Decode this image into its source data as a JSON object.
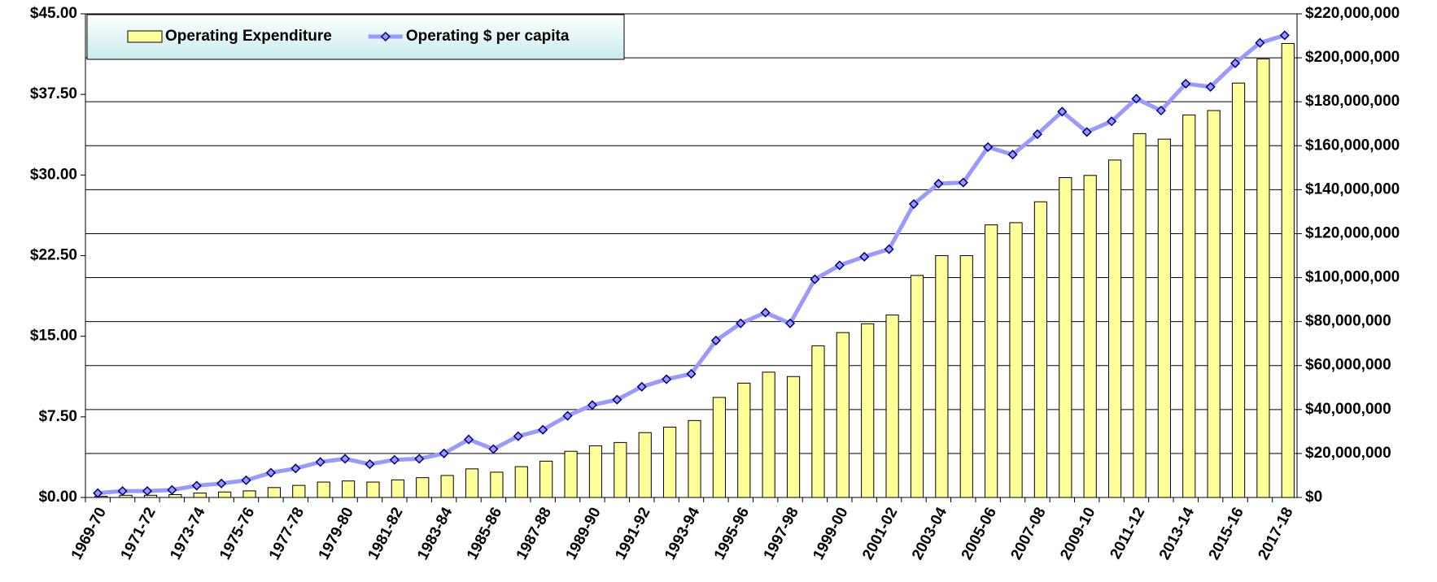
{
  "chart_data": {
    "type": "bar_line",
    "categories": [
      "1969-70",
      null,
      "1971-72",
      null,
      "1973-74",
      null,
      "1975-76",
      null,
      "1977-78",
      null,
      "1979-80",
      null,
      "1981-82",
      null,
      "1983-84",
      null,
      "1985-86",
      null,
      "1987-88",
      null,
      "1989-90",
      null,
      "1991-92",
      null,
      "1993-94",
      null,
      "1995-96",
      null,
      "1997-98",
      null,
      "1999-00",
      null,
      "2001-02",
      null,
      "2003-04",
      null,
      "2005-06",
      null,
      "2007-08",
      null,
      "2009-10",
      null,
      "2011-12",
      null,
      "2013-14",
      null,
      "2015-16",
      null,
      "2017-18"
    ],
    "series": [
      {
        "name": "Operating Expenditure",
        "type": "bar",
        "axis": "y2",
        "color": "#ffff99",
        "values": [
          500000,
          1000000,
          1000000,
          1300000,
          2000000,
          2500000,
          3000000,
          4500000,
          5500000,
          7000000,
          7500000,
          7000000,
          8000000,
          9000000,
          10000000,
          13000000,
          11500000,
          14000000,
          16500000,
          21000000,
          23500000,
          25000000,
          29500000,
          32000000,
          35000000,
          45500000,
          52000000,
          57000000,
          55000000,
          69000000,
          75000000,
          79000000,
          83000000,
          101000000,
          110000000,
          110000000,
          124000000,
          125000000,
          134500000,
          145500000,
          146500000,
          153500000,
          165500000,
          163000000,
          174000000,
          176000000,
          188500000,
          199500000,
          206500000
        ]
      },
      {
        "name": "Operating $ per capita",
        "type": "line",
        "axis": "y",
        "color": "#9999ff",
        "marker_color": "#9999ff",
        "values": [
          0.4,
          0.6,
          0.6,
          0.7,
          1.1,
          1.3,
          1.6,
          2.3,
          2.7,
          3.3,
          3.6,
          3.1,
          3.5,
          3.6,
          4.1,
          5.4,
          4.5,
          5.7,
          6.3,
          7.6,
          8.6,
          9.1,
          10.3,
          11.0,
          11.5,
          14.6,
          16.2,
          17.2,
          16.2,
          20.3,
          21.6,
          22.4,
          23.1,
          27.3,
          29.2,
          29.3,
          32.6,
          31.9,
          33.8,
          35.9,
          34.0,
          35.0,
          37.1,
          36.0,
          38.5,
          38.2,
          40.4,
          42.3,
          43.0
        ]
      }
    ],
    "ylim": [
      0,
      45
    ],
    "yticks": [
      {
        "value": 0,
        "label": "$0.00"
      },
      {
        "value": 7.5,
        "label": "$7.50"
      },
      {
        "value": 15,
        "label": "$15.00"
      },
      {
        "value": 22.5,
        "label": "$22.50"
      },
      {
        "value": 30,
        "label": "$30.00"
      },
      {
        "value": 37.5,
        "label": "$37.50"
      },
      {
        "value": 45,
        "label": "$45.00"
      }
    ],
    "y2lim": [
      0,
      220000000
    ],
    "y2ticks": [
      {
        "value": 0,
        "label": "$0"
      },
      {
        "value": 20000000,
        "label": "$20,000,000"
      },
      {
        "value": 40000000,
        "label": "$40,000,000"
      },
      {
        "value": 60000000,
        "label": "$60,000,000"
      },
      {
        "value": 80000000,
        "label": "$80,000,000"
      },
      {
        "value": 100000000,
        "label": "$100,000,000"
      },
      {
        "value": 120000000,
        "label": "$120,000,000"
      },
      {
        "value": 140000000,
        "label": "$140,000,000"
      },
      {
        "value": 160000000,
        "label": "$160,000,000"
      },
      {
        "value": 180000000,
        "label": "$180,000,000"
      },
      {
        "value": 200000000,
        "label": "$200,000,000"
      },
      {
        "value": 220000000,
        "label": "$220,000,000"
      }
    ],
    "grid": "y2",
    "legend": "upper left"
  }
}
